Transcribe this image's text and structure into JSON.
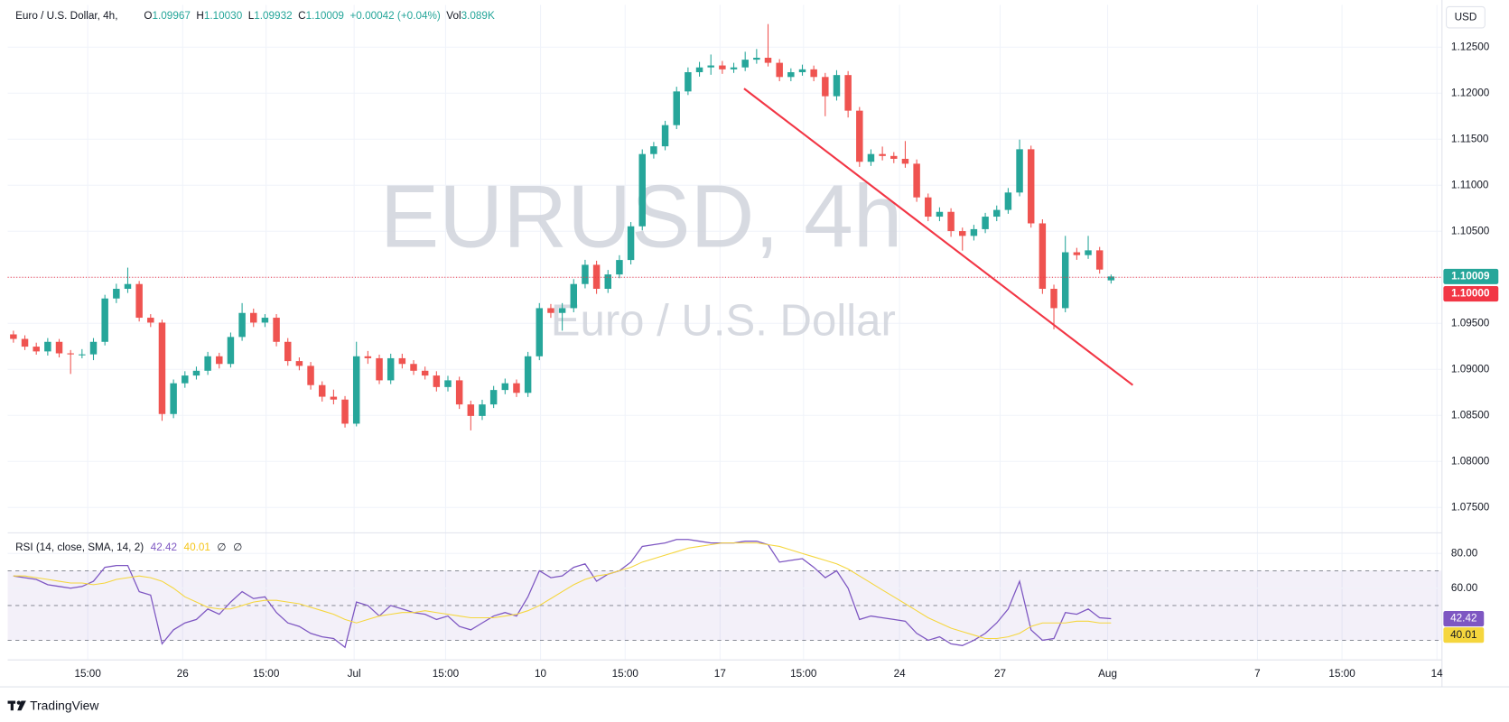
{
  "header": {
    "title": "Euro / U.S. Dollar, 4h,",
    "ohlc": [
      {
        "label": "O",
        "value": "1.09967"
      },
      {
        "label": "H",
        "value": "1.10030"
      },
      {
        "label": "L",
        "value": "1.09932"
      },
      {
        "label": "C",
        "value": "1.10009"
      }
    ],
    "change": "+0.00042 (+0.04%)",
    "volume": {
      "label": "Vol",
      "value": "3.089K"
    },
    "currency": "USD",
    "watermark": "EURUSD, 4h",
    "watermark_subtitle": "Euro / U.S. Dollar",
    "brand": "TradingView"
  },
  "chart_data": [
    {
      "type": "candlestick",
      "up_color": "#26a69a",
      "down_color": "#ef5350",
      "grid": true,
      "xlim": [
        -0.5,
        124.9
      ],
      "xticks": [
        {
          "value": 6.5,
          "label": "15:00"
        },
        {
          "value": 14.8,
          "label": "26"
        },
        {
          "value": 22.1,
          "label": "15:00"
        },
        {
          "value": 29.8,
          "label": "Jul"
        },
        {
          "value": 37.8,
          "label": "15:00"
        },
        {
          "value": 46.1,
          "label": "10"
        },
        {
          "value": 53.5,
          "label": "15:00"
        },
        {
          "value": 61.8,
          "label": "17"
        },
        {
          "value": 69.1,
          "label": "15:00"
        },
        {
          "value": 77.5,
          "label": "24"
        },
        {
          "value": 86.3,
          "label": "27"
        },
        {
          "value": 95.7,
          "label": "Aug"
        },
        {
          "value": 108.8,
          "label": "7"
        },
        {
          "value": 116.2,
          "label": "15:00"
        },
        {
          "value": 124.5,
          "label": "14"
        }
      ],
      "ylim": [
        1.0724,
        1.1296
      ],
      "yticks": [
        {
          "value": 1.075,
          "label": "1.07500"
        },
        {
          "value": 1.08,
          "label": "1.08000"
        },
        {
          "value": 1.085,
          "label": "1.08500"
        },
        {
          "value": 1.09,
          "label": "1.09000"
        },
        {
          "value": 1.095,
          "label": "1.09500"
        },
        {
          "value": 1.1,
          "label": "1.10000"
        },
        {
          "value": 1.105,
          "label": "1.10500"
        },
        {
          "value": 1.11,
          "label": "1.11000"
        },
        {
          "value": 1.115,
          "label": "1.11500"
        },
        {
          "value": 1.12,
          "label": "1.12000"
        },
        {
          "value": 1.125,
          "label": "1.12500"
        }
      ],
      "price_lines": [
        {
          "value": 1.10009,
          "color": "#26a69a"
        },
        {
          "value": 1.1,
          "label": "1.10000",
          "color": "#f23645"
        }
      ],
      "trendline": {
        "x": [
          63.9,
          97.9
        ],
        "y": [
          1.1205,
          1.08829
        ],
        "color": "#f23645"
      },
      "candles": [
        [
          1.0938,
          1.0942,
          1.0929,
          1.09331
        ],
        [
          1.09331,
          1.0937,
          1.0921,
          1.09247
        ],
        [
          1.09247,
          1.0929,
          1.0916,
          1.09195
        ],
        [
          1.09195,
          1.0934,
          1.0915,
          1.09299
        ],
        [
          1.09299,
          1.0933,
          1.0913,
          1.09174
        ],
        [
          1.09174,
          1.0921,
          1.0895,
          1.09163
        ],
        [
          1.09163,
          1.0922,
          1.0912,
          1.09163
        ],
        [
          1.09163,
          1.0934,
          1.091,
          1.09299
        ],
        [
          1.09299,
          1.0981,
          1.0926,
          1.0977
        ],
        [
          1.0977,
          1.0993,
          1.0972,
          1.09875
        ],
        [
          1.09875,
          1.10105,
          1.0983,
          1.09927
        ],
        [
          1.09927,
          1.0996,
          1.0952,
          1.09561
        ],
        [
          1.09561,
          1.096,
          1.0946,
          1.09508
        ],
        [
          1.09508,
          1.0954,
          1.08441,
          1.08515
        ],
        [
          1.08515,
          1.0889,
          1.0847,
          1.08849
        ],
        [
          1.08849,
          1.0898,
          1.088,
          1.08933
        ],
        [
          1.08933,
          1.0903,
          1.0889,
          1.08985
        ],
        [
          1.08985,
          1.0919,
          1.0894,
          1.09142
        ],
        [
          1.09142,
          1.0918,
          1.0901,
          1.09059
        ],
        [
          1.09059,
          1.094,
          1.0902,
          1.09352
        ],
        [
          1.09352,
          1.0972,
          1.0931,
          1.09613
        ],
        [
          1.09613,
          1.0966,
          1.0946,
          1.09508
        ],
        [
          1.09508,
          1.096,
          1.0946,
          1.09561
        ],
        [
          1.09561,
          1.096,
          1.0925,
          1.09299
        ],
        [
          1.09299,
          1.0934,
          1.0904,
          1.0909
        ],
        [
          1.0909,
          1.0913,
          1.0899,
          1.09038
        ],
        [
          1.09038,
          1.0908,
          1.0878,
          1.08829
        ],
        [
          1.08829,
          1.0887,
          1.0865,
          1.08703
        ],
        [
          1.08703,
          1.0878,
          1.0862,
          1.08672
        ],
        [
          1.08672,
          1.0871,
          1.08368,
          1.0841
        ],
        [
          1.0841,
          1.093,
          1.0838,
          1.09142
        ],
        [
          1.09142,
          1.092,
          1.0906,
          1.09121
        ],
        [
          1.09121,
          1.0916,
          1.0884,
          1.08881
        ],
        [
          1.08881,
          1.0917,
          1.0884,
          1.09121
        ],
        [
          1.09121,
          1.0917,
          1.0901,
          1.09059
        ],
        [
          1.09059,
          1.091,
          1.0894,
          1.08985
        ],
        [
          1.08985,
          1.0903,
          1.0889,
          1.08933
        ],
        [
          1.08933,
          1.0898,
          1.0876,
          1.08808
        ],
        [
          1.08808,
          1.0893,
          1.0876,
          1.08881
        ],
        [
          1.08881,
          1.0892,
          1.0857,
          1.08619
        ],
        [
          1.08619,
          1.0866,
          1.08337,
          1.08494
        ],
        [
          1.08494,
          1.0867,
          1.0845,
          1.08619
        ],
        [
          1.08619,
          1.0882,
          1.0858,
          1.08776
        ],
        [
          1.08776,
          1.089,
          1.0873,
          1.08849
        ],
        [
          1.08849,
          1.0889,
          1.087,
          1.08745
        ],
        [
          1.08745,
          1.0919,
          1.087,
          1.09142
        ],
        [
          1.09142,
          1.0972,
          1.091,
          1.09665
        ],
        [
          1.09665,
          1.0971,
          1.0956,
          1.09613
        ],
        [
          1.09613,
          1.0972,
          1.0942,
          1.09665
        ],
        [
          1.09665,
          1.0998,
          1.0962,
          1.09927
        ],
        [
          1.09927,
          1.1019,
          1.0988,
          1.10136
        ],
        [
          1.10136,
          1.1018,
          1.0982,
          1.09875
        ],
        [
          1.09875,
          1.1008,
          1.0983,
          1.10031
        ],
        [
          1.10031,
          1.1024,
          1.0999,
          1.10188
        ],
        [
          1.10188,
          1.106,
          1.1014,
          1.10554
        ],
        [
          1.10554,
          1.1139,
          1.1051,
          1.11339
        ],
        [
          1.11339,
          1.1147,
          1.1129,
          1.11423
        ],
        [
          1.11423,
          1.117,
          1.1138,
          1.11653
        ],
        [
          1.11653,
          1.1207,
          1.1161,
          1.12019
        ],
        [
          1.12019,
          1.1228,
          1.1198,
          1.12228
        ],
        [
          1.12228,
          1.1234,
          1.1218,
          1.1228
        ],
        [
          1.1228,
          1.1242,
          1.122,
          1.12301
        ],
        [
          1.12301,
          1.1235,
          1.1221,
          1.12259
        ],
        [
          1.12259,
          1.1233,
          1.1222,
          1.1228
        ],
        [
          1.1228,
          1.1245,
          1.1224,
          1.12364
        ],
        [
          1.12364,
          1.1248,
          1.1232,
          1.12385
        ],
        [
          1.12385,
          1.12751,
          1.1229,
          1.1233
        ],
        [
          1.1233,
          1.1237,
          1.1213,
          1.12176
        ],
        [
          1.12176,
          1.1227,
          1.1213,
          1.12228
        ],
        [
          1.12228,
          1.1231,
          1.1219,
          1.12259
        ],
        [
          1.12259,
          1.123,
          1.1213,
          1.12176
        ],
        [
          1.12176,
          1.1222,
          1.1175,
          1.11967
        ],
        [
          1.11967,
          1.1225,
          1.1192,
          1.12197
        ],
        [
          1.12197,
          1.1224,
          1.11736,
          1.1181
        ],
        [
          1.1181,
          1.1185,
          1.112,
          1.11255
        ],
        [
          1.11255,
          1.1139,
          1.1121,
          1.11339
        ],
        [
          1.11339,
          1.1142,
          1.1127,
          1.11318
        ],
        [
          1.11318,
          1.1136,
          1.1124,
          1.11287
        ],
        [
          1.11287,
          1.1148,
          1.1119,
          1.11234
        ],
        [
          1.11234,
          1.1128,
          1.1082,
          1.10868
        ],
        [
          1.10868,
          1.1091,
          1.1061,
          1.10659
        ],
        [
          1.10659,
          1.1076,
          1.1061,
          1.10711
        ],
        [
          1.10711,
          1.1075,
          1.1044,
          1.10502
        ],
        [
          1.10502,
          1.1054,
          1.1029,
          1.1045
        ],
        [
          1.1045,
          1.1057,
          1.104,
          1.10523
        ],
        [
          1.10523,
          1.107,
          1.1048,
          1.10659
        ],
        [
          1.10659,
          1.1078,
          1.1061,
          1.10732
        ],
        [
          1.10732,
          1.1097,
          1.1069,
          1.10921
        ],
        [
          1.10921,
          1.11496,
          1.1088,
          1.11391
        ],
        [
          1.11391,
          1.1143,
          1.1054,
          1.10586
        ],
        [
          1.10586,
          1.1063,
          1.0982,
          1.09875
        ],
        [
          1.09875,
          1.0992,
          1.09435,
          1.09665
        ],
        [
          1.09665,
          1.1045,
          1.0962,
          1.10272
        ],
        [
          1.10272,
          1.1032,
          1.1019,
          1.10241
        ],
        [
          1.10241,
          1.1045,
          1.102,
          1.10293
        ],
        [
          1.10293,
          1.1033,
          1.1004,
          1.10084
        ],
        [
          1.09967,
          1.1003,
          1.09932,
          1.10009
        ]
      ]
    },
    {
      "type": "line",
      "title": "RSI (14, close, SMA, 14, 2)",
      "extras": [
        "∅",
        "∅"
      ],
      "ylim": [
        19,
        91
      ],
      "yticks": [
        {
          "value": 60,
          "label": "60.00"
        },
        {
          "value": 80,
          "label": "80.00"
        }
      ],
      "band": [
        30,
        70
      ],
      "midline": 50,
      "band_color": "#7e57c2",
      "series": [
        {
          "name": "RSI",
          "color": "#7e57c2",
          "values": [
            67,
            66,
            65,
            62,
            61,
            60,
            61,
            64,
            72,
            73,
            73,
            58,
            56,
            28,
            36,
            40,
            42,
            48,
            45,
            52,
            58,
            54,
            55,
            46,
            40,
            38,
            34,
            32,
            31,
            26,
            52,
            50,
            44,
            50,
            48,
            46,
            45,
            42,
            44,
            38,
            36,
            40,
            44,
            46,
            44,
            55,
            70,
            66,
            67,
            72,
            74,
            64,
            68,
            70,
            75,
            84,
            85,
            86,
            88,
            88,
            87,
            86,
            86,
            86,
            87,
            87,
            85,
            75,
            76,
            77,
            72,
            66,
            70,
            60,
            42,
            44,
            43,
            42,
            41,
            34,
            30,
            32,
            28,
            27,
            30,
            34,
            40,
            48,
            64,
            36,
            30,
            31,
            46,
            45,
            48,
            43,
            42.42
          ]
        },
        {
          "name": "SMA",
          "color": "#f5d63d",
          "values": [
            67,
            67,
            66,
            65,
            64,
            63,
            63,
            62,
            63,
            65,
            66,
            67,
            66,
            64,
            60,
            55,
            52,
            49,
            48,
            48,
            50,
            52,
            53,
            53,
            52,
            51,
            49,
            47,
            45,
            42,
            40,
            42,
            44,
            45,
            46,
            46,
            47,
            46,
            45,
            44,
            43,
            43,
            43,
            44,
            45,
            47,
            50,
            54,
            58,
            62,
            65,
            67,
            68,
            70,
            72,
            75,
            77,
            79,
            81,
            83,
            84,
            85,
            86,
            86,
            86,
            86,
            85,
            84,
            82,
            80,
            78,
            76,
            74,
            71,
            67,
            63,
            59,
            55,
            51,
            47,
            43,
            40,
            37,
            35,
            33,
            31,
            31,
            32,
            34,
            38,
            40,
            40,
            40,
            41,
            41,
            40,
            40.01
          ]
        }
      ]
    }
  ]
}
